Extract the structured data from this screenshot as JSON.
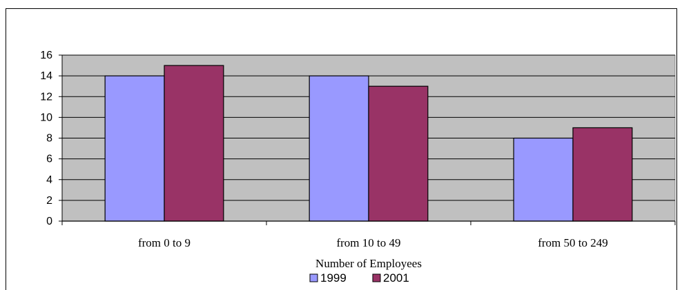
{
  "chart_data": {
    "type": "bar",
    "categories": [
      "from 0 to 9",
      "from 10 to 49",
      "from 50 to 249"
    ],
    "series": [
      {
        "name": "1999",
        "values": [
          14,
          14,
          8
        ],
        "color": "#9999FF"
      },
      {
        "name": "2001",
        "values": [
          15,
          13,
          9
        ],
        "color": "#993366"
      }
    ],
    "xlabel": "Number of Employees",
    "ylabel": "",
    "ylim": [
      0,
      16
    ],
    "yticks": [
      0,
      2,
      4,
      6,
      8,
      10,
      12,
      14,
      16
    ],
    "grid": true,
    "plot_background": "#C0C0C0",
    "legend_position": "bottom"
  }
}
